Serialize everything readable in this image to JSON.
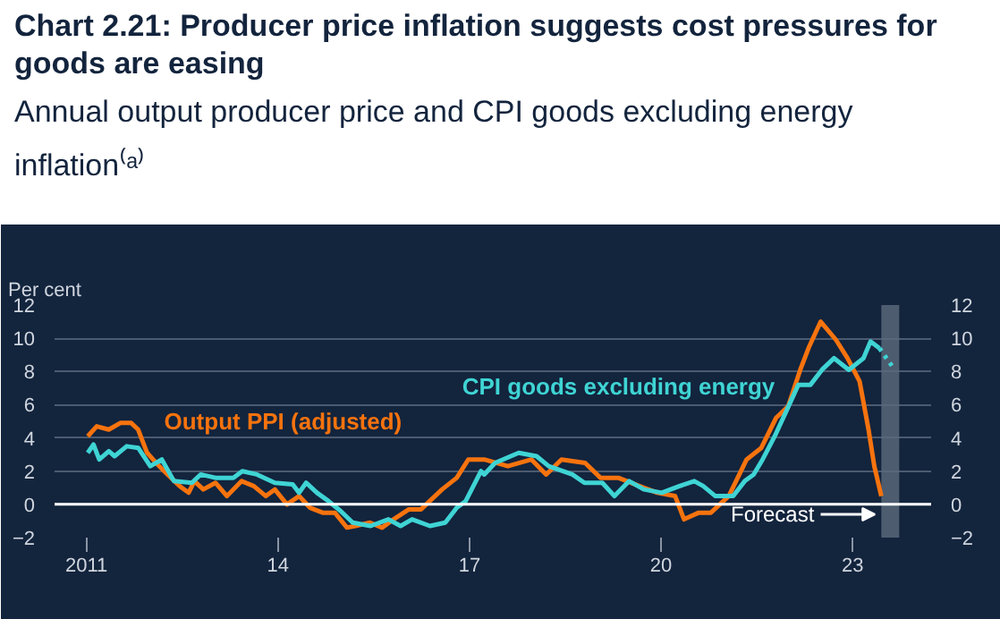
{
  "chart_data": {
    "type": "line",
    "title": "Chart 2.21: Producer price inflation suggests cost pressures for goods are easing",
    "subtitle": "Annual output producer price and CPI goods excluding energy inflation⁽ᵃ⁾",
    "ylabel": "Per cent",
    "xlim": [
      2010.5,
      2024.23
    ],
    "xticks": [
      {
        "value": 2011,
        "label": "2011"
      },
      {
        "value": 2014,
        "label": "14"
      },
      {
        "value": 2017,
        "label": "17"
      },
      {
        "value": 2020,
        "label": "20"
      },
      {
        "value": 2023,
        "label": "23"
      }
    ],
    "ylim": [
      -2,
      12
    ],
    "yticks": [
      -2,
      0,
      2,
      4,
      6,
      8,
      10,
      12
    ],
    "y2lim": [
      -2,
      12
    ],
    "y2ticks": [
      -2,
      0,
      2,
      4,
      6,
      8,
      10,
      12
    ],
    "grid": "y",
    "legend": false,
    "ref_lines": [
      {
        "axis": "y",
        "value": 0,
        "color": "#ffffff"
      }
    ],
    "bands": [
      {
        "axis": "x",
        "from": 2023.45,
        "to": 2023.73,
        "label": "Forecast",
        "color": "#5d6a7c"
      }
    ],
    "series": [
      {
        "name": "Output PPI (adjusted)",
        "color": "#f7730e",
        "x": [
          2011.02,
          2011.16,
          2011.35,
          2011.53,
          2011.7,
          2011.81,
          2011.95,
          2012.09,
          2012.27,
          2012.46,
          2012.6,
          2012.69,
          2012.83,
          2013.02,
          2013.2,
          2013.43,
          2013.62,
          2013.81,
          2013.95,
          2014.14,
          2014.33,
          2014.5,
          2014.7,
          2014.89,
          2015.08,
          2015.21,
          2015.44,
          2015.63,
          2015.81,
          2016.05,
          2016.24,
          2016.57,
          2016.8,
          2016.98,
          2017.23,
          2017.6,
          2017.97,
          2018.2,
          2018.44,
          2018.81,
          2019.05,
          2019.33,
          2019.66,
          2019.94,
          2020.22,
          2020.36,
          2020.59,
          2020.78,
          2021.06,
          2021.34,
          2021.57,
          2021.8,
          2021.99,
          2022.18,
          2022.32,
          2022.5,
          2022.74,
          2022.92,
          2023.11,
          2023.25,
          2023.34,
          2023.45
        ],
        "values": [
          4.1,
          4.7,
          4.5,
          4.9,
          4.9,
          4.5,
          3.1,
          2.5,
          1.8,
          1.1,
          0.7,
          1.4,
          0.9,
          1.3,
          0.5,
          1.4,
          1.1,
          0.5,
          0.9,
          0,
          0.5,
          -0.2,
          -0.5,
          -0.5,
          -1.4,
          -1.3,
          -1.1,
          -1.4,
          -0.9,
          -0.3,
          -0.3,
          0.9,
          1.6,
          2.7,
          2.7,
          2.3,
          2.7,
          1.8,
          2.7,
          2.5,
          1.6,
          1.6,
          1.1,
          0.7,
          0.5,
          -0.9,
          -0.5,
          -0.5,
          0.5,
          2.7,
          3.4,
          5.2,
          5.9,
          8.1,
          9.5,
          11.0,
          9.9,
          8.8,
          7.4,
          4.5,
          2.3,
          0.5
        ]
      },
      {
        "name": "CPI goods excluding energy",
        "color": "#3fd4d4",
        "x": [
          2011.02,
          2011.11,
          2011.2,
          2011.35,
          2011.44,
          2011.63,
          2011.81,
          2012.0,
          2012.18,
          2012.37,
          2012.65,
          2012.79,
          2013.02,
          2013.3,
          2013.44,
          2013.67,
          2013.95,
          2014.23,
          2014.33,
          2014.44,
          2014.61,
          2014.79,
          2014.98,
          2015.17,
          2015.45,
          2015.73,
          2015.92,
          2016.1,
          2016.38,
          2016.62,
          2016.8,
          2016.94,
          2017.18,
          2017.23,
          2017.4,
          2017.77,
          2018.05,
          2018.24,
          2018.61,
          2018.8,
          2019.08,
          2019.27,
          2019.5,
          2019.73,
          2020.01,
          2020.29,
          2020.52,
          2020.66,
          2020.85,
          2021.13,
          2021.31,
          2021.45,
          2021.59,
          2021.78,
          2021.96,
          2022.15,
          2022.34,
          2022.52,
          2022.71,
          2022.94,
          2023.17,
          2023.28,
          2023.42
        ],
        "values": [
          3.1,
          3.6,
          2.7,
          3.2,
          2.9,
          3.5,
          3.4,
          2.3,
          2.7,
          1.4,
          1.3,
          1.8,
          1.6,
          1.6,
          2.0,
          1.8,
          1.3,
          1.2,
          0.7,
          1.3,
          0.7,
          0.2,
          -0.4,
          -1.1,
          -1.3,
          -0.9,
          -1.3,
          -0.9,
          -1.3,
          -1.1,
          -0.2,
          0.2,
          2.0,
          1.8,
          2.5,
          3.1,
          2.9,
          2.3,
          1.8,
          1.3,
          1.3,
          0.5,
          1.4,
          0.9,
          0.7,
          1.1,
          1.4,
          1.1,
          0.5,
          0.5,
          1.4,
          1.8,
          2.7,
          4.1,
          5.6,
          7.2,
          7.2,
          8.1,
          8.8,
          8.1,
          8.8,
          9.8,
          9.4
        ]
      },
      {
        "color": "#3fd4d4",
        "line_style": "dotted",
        "x": [
          2023.42,
          2023.66
        ],
        "values": [
          9.4,
          8.1
        ]
      }
    ]
  }
}
